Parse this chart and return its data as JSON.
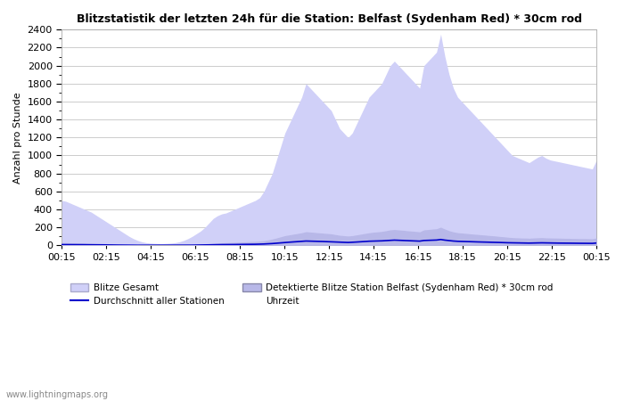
{
  "title": "Blitzstatistik der letzten 24h für die Station: Belfast (Sydenham Red) * 30cm rod",
  "ylabel": "Anzahl pro Stunde",
  "xlabel": "Uhrzeit",
  "x_labels": [
    "00:15",
    "02:15",
    "04:15",
    "06:15",
    "08:15",
    "10:15",
    "12:15",
    "14:15",
    "16:15",
    "18:15",
    "20:15",
    "22:15",
    "00:15"
  ],
  "ylim": [
    0,
    2400
  ],
  "yticks": [
    0,
    200,
    400,
    600,
    800,
    1000,
    1200,
    1400,
    1600,
    1800,
    2000,
    2200,
    2400
  ],
  "bg_color": "#ffffff",
  "plot_bg_color": "#ffffff",
  "grid_color": "#cccccc",
  "fill_gesamt_color": "#d0d0f8",
  "fill_detected_color": "#b8b8e8",
  "avg_line_color": "#0000cc",
  "watermark": "www.lightningmaps.org",
  "legend_blitze_gesamt": "Blitze Gesamt",
  "legend_detected": "Detektierte Blitze Station Belfast (Sydenham Red) * 30cm rod",
  "legend_avg": "Durchschnitt aller Stationen",
  "legend_uhrzeit": "Uhrzeit",
  "gesamt_values": [
    500,
    490,
    470,
    450,
    430,
    410,
    390,
    370,
    340,
    310,
    280,
    250,
    220,
    190,
    160,
    130,
    100,
    75,
    55,
    40,
    30,
    25,
    22,
    20,
    20,
    22,
    25,
    30,
    40,
    55,
    75,
    100,
    130,
    160,
    200,
    250,
    300,
    330,
    350,
    360,
    380,
    400,
    420,
    440,
    460,
    480,
    500,
    530,
    600,
    700,
    800,
    950,
    1100,
    1250,
    1350,
    1450,
    1550,
    1650,
    1800,
    1750,
    1700,
    1650,
    1600,
    1550,
    1500,
    1400,
    1300,
    1250,
    1200,
    1250,
    1350,
    1450,
    1550,
    1650,
    1700,
    1750,
    1800,
    1900,
    2000,
    2050,
    2000,
    1950,
    1900,
    1850,
    1800,
    1750,
    2000,
    2050,
    2100,
    2150,
    2350,
    2100,
    1900,
    1750,
    1650,
    1600,
    1550,
    1500,
    1450,
    1400,
    1350,
    1300,
    1250,
    1200,
    1150,
    1100,
    1050,
    1000,
    980,
    960,
    940,
    920,
    950,
    980,
    1000,
    970,
    950,
    940,
    930,
    920,
    910,
    900,
    890,
    880,
    870,
    860,
    850,
    950
  ],
  "detected_values": [
    30,
    30,
    28,
    27,
    26,
    25,
    24,
    23,
    22,
    21,
    20,
    18,
    16,
    14,
    12,
    10,
    8,
    6,
    5,
    4,
    3,
    3,
    2,
    2,
    2,
    2,
    3,
    3,
    4,
    5,
    6,
    8,
    10,
    12,
    15,
    18,
    22,
    25,
    28,
    30,
    32,
    34,
    36,
    38,
    40,
    42,
    44,
    47,
    52,
    60,
    70,
    82,
    95,
    108,
    116,
    124,
    132,
    140,
    152,
    148,
    144,
    140,
    136,
    132,
    128,
    120,
    112,
    108,
    104,
    108,
    116,
    124,
    132,
    140,
    146,
    150,
    155,
    163,
    172,
    176,
    172,
    168,
    163,
    159,
    155,
    150,
    172,
    176,
    181,
    185,
    202,
    181,
    163,
    150,
    141,
    137,
    133,
    128,
    124,
    120,
    116,
    112,
    108,
    104,
    99,
    95,
    90,
    86,
    84,
    82,
    81,
    79,
    82,
    84,
    86,
    83,
    82,
    81,
    80,
    79,
    78,
    77,
    76,
    75,
    75,
    74,
    73,
    82
  ],
  "avg_values": [
    8,
    8,
    8,
    7,
    7,
    7,
    6,
    6,
    6,
    5,
    5,
    4,
    4,
    3,
    3,
    2,
    2,
    1,
    1,
    1,
    1,
    1,
    1,
    1,
    1,
    1,
    1,
    1,
    1,
    1,
    2,
    2,
    3,
    3,
    4,
    5,
    6,
    7,
    8,
    8,
    9,
    9,
    10,
    10,
    11,
    11,
    12,
    13,
    15,
    17,
    20,
    24,
    28,
    32,
    35,
    38,
    41,
    44,
    48,
    47,
    45,
    44,
    43,
    41,
    40,
    38,
    35,
    33,
    32,
    34,
    37,
    40,
    43,
    46,
    47,
    48,
    50,
    53,
    56,
    58,
    56,
    54,
    52,
    50,
    48,
    47,
    54,
    56,
    57,
    59,
    65,
    58,
    53,
    48,
    45,
    44,
    42,
    41,
    39,
    38,
    37,
    35,
    34,
    33,
    32,
    30,
    29,
    28,
    27,
    27,
    26,
    25,
    26,
    27,
    28,
    27,
    26,
    26,
    25,
    25,
    24,
    24,
    23,
    23,
    23,
    22,
    22,
    26
  ]
}
